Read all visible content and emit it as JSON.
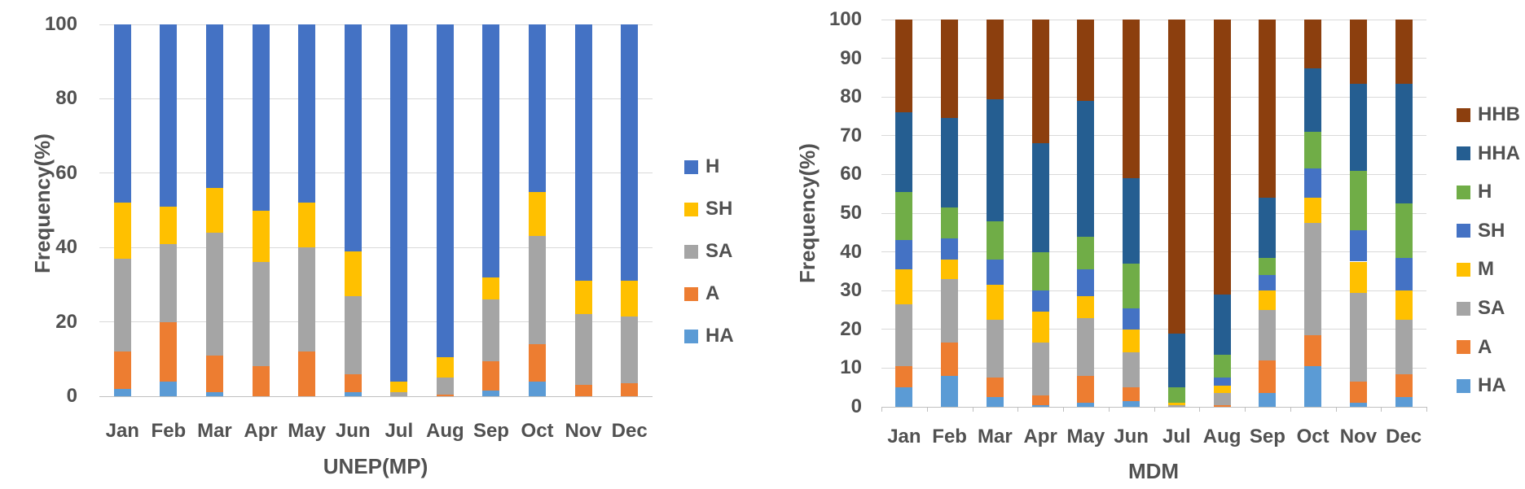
{
  "figure": {
    "background": "#ffffff",
    "text_color": "#515151",
    "grid_color": "#d9d9d9",
    "axis_color": "#bfbfbf"
  },
  "chart_data": [
    {
      "type": "bar",
      "stacked": true,
      "percent_stacked": true,
      "xlabel": "UNEP(MP)",
      "ylabel": "Frequency(%)",
      "ylim": [
        0,
        100
      ],
      "y_ticks": [
        0,
        20,
        40,
        60,
        80,
        100
      ],
      "grid": true,
      "legend_position": "right",
      "categories": [
        "Jan",
        "Feb",
        "Mar",
        "Apr",
        "May",
        "Jun",
        "Jul",
        "Aug",
        "Sep",
        "Oct",
        "Nov",
        "Dec"
      ],
      "series": [
        {
          "name": "HA",
          "color": "#5B9BD5",
          "values": [
            2,
            4,
            1,
            0,
            0,
            1,
            0,
            0,
            1.5,
            4,
            0,
            0
          ]
        },
        {
          "name": "A",
          "color": "#ED7D31",
          "values": [
            10,
            16,
            10,
            8,
            12,
            5,
            0,
            0.5,
            8,
            10,
            3,
            3.5
          ]
        },
        {
          "name": "SA",
          "color": "#A5A5A5",
          "values": [
            25,
            21,
            33,
            28,
            28,
            21,
            1,
            4.5,
            16.5,
            29,
            19,
            18
          ]
        },
        {
          "name": "SH",
          "color": "#FFC000",
          "values": [
            15,
            10,
            12,
            14,
            12,
            12,
            3,
            5.5,
            6,
            12,
            9,
            9.5
          ]
        },
        {
          "name": "H",
          "color": "#4472C4",
          "values": [
            48,
            49,
            44,
            50,
            48,
            61,
            96,
            89.5,
            68,
            45,
            69,
            69
          ]
        }
      ],
      "legend": [
        "H",
        "SH",
        "SA",
        "A",
        "HA"
      ]
    },
    {
      "type": "bar",
      "stacked": true,
      "percent_stacked": true,
      "xlabel": "MDM",
      "ylabel": "Frequency(%)",
      "ylim": [
        0,
        100
      ],
      "y_ticks": [
        0,
        10,
        20,
        30,
        40,
        50,
        60,
        70,
        80,
        90,
        100
      ],
      "grid": true,
      "legend_position": "right",
      "categories": [
        "Jan",
        "Feb",
        "Mar",
        "Apr",
        "May",
        "Jun",
        "Jul",
        "Aug",
        "Sep",
        "Oct",
        "Nov",
        "Dec"
      ],
      "series": [
        {
          "name": "HA",
          "color": "#5B9BD5",
          "values": [
            5,
            8,
            2.5,
            0.5,
            1,
            1.5,
            0,
            0,
            3.5,
            10.5,
            1,
            2.5
          ]
        },
        {
          "name": "A",
          "color": "#ED7D31",
          "values": [
            5.5,
            8.5,
            5,
            2.5,
            7,
            3.5,
            0,
            0.5,
            8.5,
            8,
            5.5,
            6
          ]
        },
        {
          "name": "SA",
          "color": "#A5A5A5",
          "values": [
            16,
            16.5,
            15,
            13.5,
            15,
            9,
            0.5,
            3,
            13,
            29,
            23,
            14
          ]
        },
        {
          "name": "M",
          "color": "#FFC000",
          "values": [
            9,
            5,
            9,
            8,
            5.5,
            6,
            0.5,
            2,
            5,
            6.5,
            8,
            7.5
          ]
        },
        {
          "name": "SH",
          "color": "#4472C4",
          "values": [
            7.5,
            5.5,
            6.5,
            5.5,
            7,
            5.5,
            0,
            2,
            4,
            7.5,
            8,
            8.5
          ]
        },
        {
          "name": "H",
          "color": "#70AD47",
          "values": [
            12.5,
            8,
            10,
            10,
            8.5,
            11.5,
            4,
            6,
            4.5,
            9.5,
            15.5,
            14
          ]
        },
        {
          "name": "HHA",
          "color": "#255E91",
          "values": [
            20.5,
            23,
            31.5,
            28,
            35,
            22,
            14,
            15.5,
            15.5,
            16.5,
            22.5,
            31
          ]
        },
        {
          "name": "HHB",
          "color": "#8C3F0E",
          "values": [
            24,
            25.5,
            20.5,
            32,
            21,
            41,
            81,
            71,
            46,
            12.5,
            16.5,
            16.5
          ]
        }
      ],
      "legend": [
        "HHB",
        "HHA",
        "H",
        "SH",
        "M",
        "SA",
        "A",
        "HA"
      ]
    }
  ]
}
